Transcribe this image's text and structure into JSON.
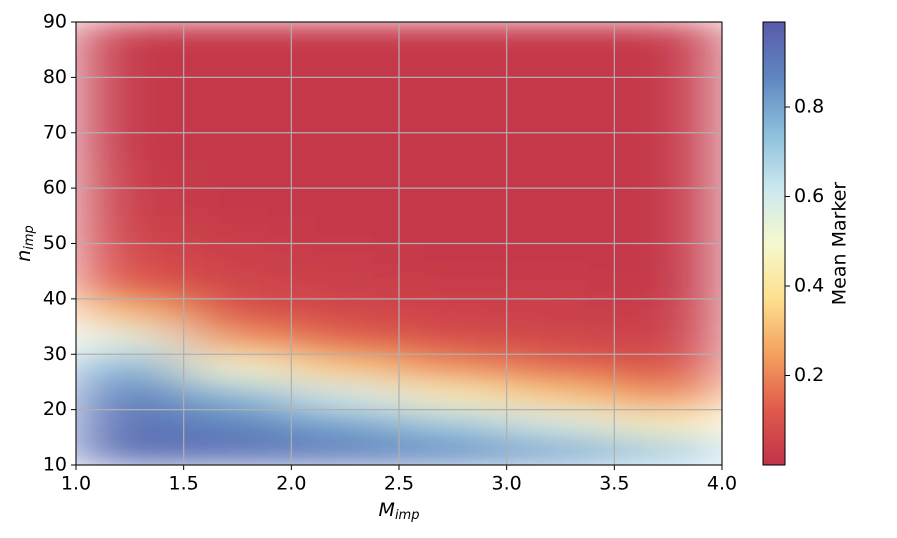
{
  "chart_data": {
    "type": "heatmap",
    "xlabel": "M",
    "xlabel_sub": "imp",
    "ylabel": "n",
    "ylabel_sub": "imp",
    "colorbar_label": "Mean Marker",
    "x": [
      1.25,
      1.75,
      2.25,
      2.75,
      3.25,
      3.75
    ],
    "y": [
      12.5,
      17.5,
      22.5,
      27.5,
      32.5,
      37.5,
      42.5,
      47.5,
      52.5,
      57.5,
      62.5,
      67.5,
      72.5,
      77.5,
      82.5,
      87.5
    ],
    "z": [
      [
        0.94,
        0.92,
        0.9,
        0.86,
        0.8,
        0.7
      ],
      [
        0.92,
        0.88,
        0.8,
        0.7,
        0.58,
        0.45
      ],
      [
        0.89,
        0.76,
        0.6,
        0.45,
        0.33,
        0.22
      ],
      [
        0.78,
        0.5,
        0.33,
        0.22,
        0.15,
        0.1
      ],
      [
        0.57,
        0.24,
        0.14,
        0.09,
        0.07,
        0.05
      ],
      [
        0.3,
        0.1,
        0.07,
        0.05,
        0.04,
        0.03
      ],
      [
        0.12,
        0.06,
        0.04,
        0.03,
        0.03,
        0.02
      ],
      [
        0.08,
        0.04,
        0.03,
        0.02,
        0.02,
        0.02
      ],
      [
        0.05,
        0.03,
        0.02,
        0.02,
        0.02,
        0.02
      ],
      [
        0.04,
        0.02,
        0.02,
        0.02,
        0.02,
        0.02
      ],
      [
        0.03,
        0.02,
        0.02,
        0.02,
        0.02,
        0.02
      ],
      [
        0.02,
        0.02,
        0.02,
        0.02,
        0.02,
        0.02
      ],
      [
        0.02,
        0.02,
        0.02,
        0.02,
        0.02,
        0.02
      ],
      [
        0.02,
        0.02,
        0.02,
        0.02,
        0.02,
        0.02
      ],
      [
        0.02,
        0.02,
        0.02,
        0.02,
        0.02,
        0.02
      ],
      [
        0.02,
        0.02,
        0.02,
        0.02,
        0.02,
        0.02
      ]
    ],
    "xlim": [
      1.0,
      4.0
    ],
    "xticks": [
      {
        "value": 1.0,
        "label": "1.0"
      },
      {
        "value": 1.5,
        "label": "1.5"
      },
      {
        "value": 2.0,
        "label": "2.0"
      },
      {
        "value": 2.5,
        "label": "2.5"
      },
      {
        "value": 3.0,
        "label": "3.0"
      },
      {
        "value": 3.5,
        "label": "3.5"
      },
      {
        "value": 4.0,
        "label": "4.0"
      }
    ],
    "ylim": [
      10,
      90
    ],
    "yticks": [
      10,
      20,
      30,
      40,
      50,
      60,
      70,
      80,
      90
    ],
    "clim": [
      0.0,
      0.99
    ],
    "cticks": [
      0.2,
      0.4,
      0.6,
      0.8
    ],
    "colormap": [
      "#c0334a",
      "#e05a4c",
      "#f4a05f",
      "#fde08f",
      "#f6f9cf",
      "#cbe8ef",
      "#8bbfdc",
      "#5f86c0",
      "#5a5aaa"
    ],
    "grid": true
  }
}
